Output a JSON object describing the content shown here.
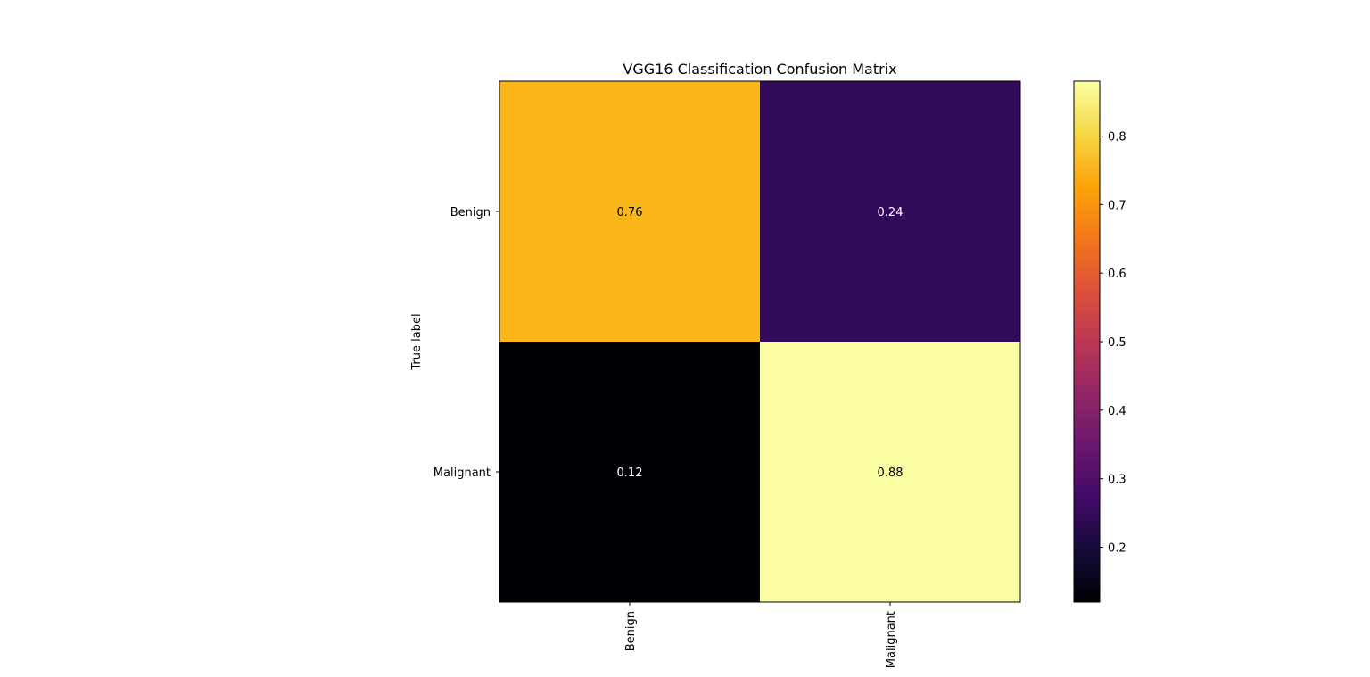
{
  "chart_data": {
    "type": "heatmap",
    "title": "VGG16 Classification Confusion Matrix",
    "ylabel": "True label",
    "xlabel": "",
    "row_labels": [
      "Benign",
      "Malignant"
    ],
    "col_labels": [
      "Benign",
      "Malignant"
    ],
    "values": [
      [
        0.76,
        0.24
      ],
      [
        0.12,
        0.88
      ]
    ],
    "cell_colors": [
      [
        "#fbb61a",
        "#300b5a"
      ],
      [
        "#010105",
        "#fafda1"
      ]
    ],
    "text_colors": [
      [
        "#000000",
        "#ffffff"
      ],
      [
        "#ffffff",
        "#000000"
      ]
    ],
    "colormap": "inferno",
    "colorbar": {
      "range": [
        0.12,
        0.88
      ],
      "ticks": [
        "0.2",
        "0.3",
        "0.4",
        "0.5",
        "0.6",
        "0.7",
        "0.8"
      ]
    },
    "grid": false
  }
}
